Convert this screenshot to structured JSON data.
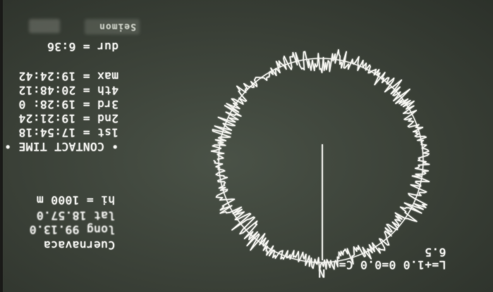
{
  "header": {
    "formula": "L=+1.0 0=0.0 C=",
    "formula_value": "6.5"
  },
  "compass": {
    "north_label": "N"
  },
  "site": {
    "name": "Cuernavaca",
    "long": "long 99.13.0",
    "lat": "lat 18.57.0",
    "height": "hi = 1000 m"
  },
  "contact": {
    "title": "• CONTACT TIME •",
    "first": "1st = 17:54:18",
    "second": "2nd = 19:21:24",
    "third": "3rd = 19:28: 0",
    "fourth": "4th = 20:48:12",
    "max": "max = 19:24:42",
    "duration": "dur = 6:36"
  },
  "footer": {
    "badge": "Seimon"
  },
  "colors": {
    "trace": "#f4f4ef",
    "background": "#3a4037"
  }
}
